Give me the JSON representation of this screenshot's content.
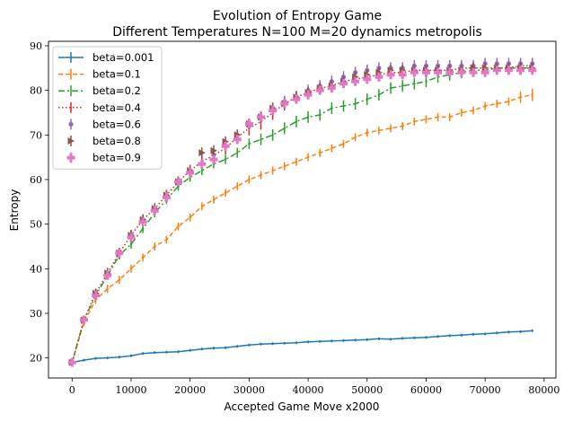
{
  "chart_data": {
    "type": "line",
    "title": "Evolution of Entropy Game",
    "subtitle": "Different Temperatures N=100 M=20 dynamics metropolis",
    "xlabel": "Accepted Game Move x2000",
    "ylabel": "Entropy",
    "xlim": [
      -4000,
      82000
    ],
    "ylim": [
      15.5,
      91
    ],
    "xticks": [
      0,
      10000,
      20000,
      30000,
      40000,
      50000,
      60000,
      70000,
      80000
    ],
    "yticks": [
      20,
      30,
      40,
      50,
      60,
      70,
      80,
      90
    ],
    "grid": false,
    "legend_position": "top-left",
    "series": [
      {
        "name": "beta=0.001",
        "color": "#1f77b4",
        "x": [
          0,
          2000,
          4000,
          6000,
          8000,
          10000,
          12000,
          14000,
          16000,
          18000,
          20000,
          22000,
          24000,
          26000,
          28000,
          30000,
          32000,
          34000,
          36000,
          38000,
          40000,
          42000,
          44000,
          46000,
          48000,
          50000,
          52000,
          54000,
          56000,
          58000,
          60000,
          62000,
          64000,
          66000,
          68000,
          70000,
          72000,
          74000,
          76000,
          78000
        ],
        "y": [
          19.0,
          19.5,
          19.9,
          20.0,
          20.2,
          20.5,
          21.0,
          21.2,
          21.3,
          21.4,
          21.7,
          22.0,
          22.2,
          22.3,
          22.6,
          22.9,
          23.1,
          23.2,
          23.3,
          23.4,
          23.6,
          23.7,
          23.8,
          23.9,
          24.0,
          24.1,
          24.3,
          24.2,
          24.4,
          24.5,
          24.6,
          24.8,
          25.0,
          25.1,
          25.3,
          25.4,
          25.6,
          25.8,
          25.9,
          26.1
        ],
        "err": [
          0.3,
          0.3,
          0.3,
          0.3,
          0.3,
          0.3,
          0.3,
          0.3,
          0.3,
          0.3,
          0.3,
          0.3,
          0.3,
          0.3,
          0.3,
          0.3,
          0.3,
          0.3,
          0.3,
          0.3,
          0.3,
          0.3,
          0.3,
          0.3,
          0.3,
          0.3,
          0.3,
          0.3,
          0.3,
          0.3,
          0.3,
          0.3,
          0.3,
          0.3,
          0.3,
          0.3,
          0.3,
          0.3,
          0.3,
          0.3
        ],
        "style": "solid"
      },
      {
        "name": "beta=0.1",
        "color": "#ff7f0e",
        "x": [
          0,
          2000,
          4000,
          6000,
          8000,
          10000,
          12000,
          14000,
          16000,
          18000,
          20000,
          22000,
          24000,
          26000,
          28000,
          30000,
          32000,
          34000,
          36000,
          38000,
          40000,
          42000,
          44000,
          46000,
          48000,
          50000,
          52000,
          54000,
          56000,
          58000,
          60000,
          62000,
          64000,
          66000,
          68000,
          70000,
          72000,
          74000,
          76000,
          78000
        ],
        "y": [
          19.0,
          28.0,
          33.0,
          35.5,
          37.5,
          40.0,
          42.5,
          45.0,
          46.5,
          49.5,
          51.5,
          54.0,
          55.5,
          57.0,
          58.5,
          60.0,
          61.0,
          62.0,
          63.0,
          64.0,
          65.0,
          66.0,
          67.0,
          68.0,
          69.5,
          70.5,
          71.0,
          71.5,
          72.0,
          73.0,
          73.5,
          74.0,
          74.0,
          75.0,
          75.5,
          76.5,
          77.0,
          77.5,
          78.5,
          79.0
        ],
        "err": [
          0.8,
          0.9,
          0.9,
          0.9,
          0.9,
          0.9,
          0.9,
          0.9,
          0.9,
          0.9,
          0.9,
          0.9,
          0.9,
          0.9,
          0.9,
          0.9,
          0.9,
          0.9,
          0.9,
          0.9,
          0.9,
          0.9,
          0.9,
          0.9,
          0.9,
          0.9,
          0.9,
          0.9,
          0.9,
          0.9,
          0.9,
          0.9,
          0.9,
          0.9,
          0.9,
          0.9,
          0.9,
          0.9,
          1.3,
          1.4
        ],
        "style": "dashed"
      },
      {
        "name": "beta=0.2",
        "color": "#2ca02c",
        "x": [
          0,
          2000,
          4000,
          6000,
          8000,
          10000,
          12000,
          14000,
          16000,
          18000,
          20000,
          22000,
          24000,
          26000,
          28000,
          30000,
          32000,
          34000,
          36000,
          38000,
          40000,
          42000,
          44000,
          46000,
          48000,
          50000,
          52000,
          54000,
          56000,
          58000,
          60000,
          62000,
          64000,
          66000,
          68000,
          70000,
          72000,
          74000,
          76000,
          78000
        ],
        "y": [
          19.0,
          28.5,
          34.0,
          38.5,
          43.0,
          45.5,
          49.0,
          52.5,
          55.5,
          58.5,
          60.5,
          62.0,
          63.5,
          64.5,
          66.0,
          68.0,
          69.0,
          70.0,
          71.5,
          73.0,
          74.0,
          74.5,
          76.0,
          76.5,
          77.0,
          78.0,
          79.0,
          80.5,
          81.0,
          81.5,
          82.0,
          83.0,
          83.5,
          84.0,
          84.5,
          84.5,
          85.0,
          85.0,
          85.0,
          85.0
        ],
        "err": [
          0.7,
          0.8,
          0.8,
          0.9,
          0.9,
          1.0,
          1.0,
          1.0,
          1.0,
          1.0,
          1.0,
          1.0,
          1.0,
          1.0,
          1.1,
          1.2,
          1.3,
          1.3,
          1.3,
          1.3,
          1.3,
          1.3,
          1.3,
          1.3,
          1.3,
          1.3,
          1.3,
          1.3,
          1.3,
          1.3,
          1.3,
          1.3,
          1.3,
          1.3,
          1.3,
          1.3,
          1.3,
          1.3,
          1.3,
          1.3
        ],
        "style": "dashdot"
      },
      {
        "name": "beta=0.4",
        "color": "#d62728",
        "x": [
          0,
          2000,
          4000,
          6000,
          8000,
          10000,
          12000,
          14000,
          16000,
          18000,
          20000,
          22000,
          24000,
          26000,
          28000,
          30000,
          32000,
          34000,
          36000,
          38000,
          40000,
          42000,
          44000,
          46000,
          48000,
          50000,
          52000,
          54000,
          56000,
          58000,
          60000,
          62000,
          64000,
          66000,
          68000,
          70000,
          72000,
          74000,
          76000,
          78000
        ],
        "y": [
          19.0,
          28.5,
          34.5,
          39.0,
          43.5,
          47.5,
          51.0,
          53.5,
          56.5,
          59.5,
          62.0,
          64.0,
          65.5,
          67.0,
          69.5,
          71.5,
          73.0,
          75.0,
          77.0,
          78.5,
          79.5,
          80.5,
          81.0,
          82.0,
          82.5,
          83.0,
          83.5,
          84.0,
          84.0,
          84.5,
          84.5,
          84.5,
          84.5,
          85.0,
          85.0,
          85.0,
          85.0,
          85.0,
          85.5,
          85.5
        ],
        "err": [
          0.8,
          1.0,
          1.0,
          1.2,
          1.2,
          1.2,
          1.2,
          1.2,
          1.2,
          1.2,
          1.3,
          1.3,
          1.3,
          1.4,
          1.5,
          1.6,
          1.8,
          1.6,
          1.5,
          1.4,
          1.3,
          1.3,
          1.3,
          1.3,
          1.3,
          1.3,
          1.3,
          1.3,
          1.3,
          1.3,
          1.3,
          1.3,
          1.3,
          1.3,
          1.3,
          1.3,
          1.3,
          1.3,
          1.3,
          1.3
        ],
        "style": "dotted"
      },
      {
        "name": "beta=0.6",
        "color": "#9467bd",
        "x": [
          0,
          2000,
          4000,
          6000,
          8000,
          10000,
          12000,
          14000,
          16000,
          18000,
          20000,
          22000,
          24000,
          26000,
          28000,
          30000,
          32000,
          34000,
          36000,
          38000,
          40000,
          42000,
          44000,
          46000,
          48000,
          50000,
          52000,
          54000,
          56000,
          58000,
          60000,
          62000,
          64000,
          66000,
          68000,
          70000,
          72000,
          74000,
          76000,
          78000
        ],
        "y": [
          19.0,
          28.5,
          34.5,
          39.0,
          43.5,
          47.5,
          51.0,
          53.5,
          56.5,
          59.5,
          62.0,
          63.5,
          65.5,
          67.5,
          70.0,
          72.0,
          74.0,
          76.0,
          77.5,
          78.5,
          80.0,
          81.0,
          82.0,
          83.0,
          84.0,
          84.5,
          85.0,
          85.0,
          85.0,
          85.5,
          85.5,
          85.5,
          85.5,
          85.5,
          85.5,
          86.0,
          86.0,
          86.0,
          86.0,
          86.0
        ],
        "err": [
          0.8,
          0.9,
          1.0,
          1.0,
          1.0,
          1.0,
          1.0,
          1.0,
          1.0,
          1.0,
          1.0,
          1.0,
          1.0,
          1.1,
          1.2,
          1.2,
          1.3,
          1.3,
          1.3,
          1.3,
          1.3,
          1.3,
          1.3,
          1.3,
          1.3,
          1.3,
          1.3,
          1.3,
          1.3,
          1.3,
          1.3,
          1.3,
          1.3,
          1.3,
          1.3,
          1.3,
          1.3,
          1.3,
          1.3,
          1.3
        ],
        "style": "markers"
      },
      {
        "name": "beta=0.8",
        "color": "#8c564b",
        "x": [
          0,
          2000,
          4000,
          6000,
          8000,
          10000,
          12000,
          14000,
          16000,
          18000,
          20000,
          22000,
          24000,
          26000,
          28000,
          30000,
          32000,
          34000,
          36000,
          38000,
          40000,
          42000,
          44000,
          46000,
          48000,
          50000,
          52000,
          54000,
          56000,
          58000,
          60000,
          62000,
          64000,
          66000,
          68000,
          70000,
          72000,
          74000,
          76000,
          78000
        ],
        "y": [
          19.0,
          28.5,
          34.5,
          39.0,
          43.5,
          47.5,
          51.0,
          53.5,
          56.5,
          59.5,
          62.0,
          66.0,
          66.5,
          68.5,
          70.0,
          72.5,
          74.0,
          76.0,
          77.0,
          78.5,
          79.5,
          80.5,
          81.0,
          82.0,
          83.0,
          83.5,
          84.0,
          84.5,
          84.5,
          84.5,
          84.5,
          84.5,
          84.5,
          84.5,
          85.0,
          85.0,
          85.0,
          85.0,
          85.0,
          85.0
        ],
        "err": [
          0.8,
          1.0,
          1.0,
          1.2,
          1.2,
          1.2,
          1.2,
          1.2,
          1.2,
          1.2,
          1.2,
          1.2,
          1.2,
          1.2,
          1.2,
          1.2,
          1.2,
          1.2,
          1.2,
          1.2,
          1.2,
          1.2,
          1.2,
          1.2,
          1.2,
          1.2,
          1.2,
          1.2,
          1.2,
          1.2,
          1.2,
          1.2,
          1.2,
          1.2,
          1.2,
          1.2,
          1.2,
          1.2,
          1.2,
          1.2
        ],
        "style": "markers"
      },
      {
        "name": "beta=0.9",
        "color": "#e377c2",
        "x": [
          0,
          2000,
          4000,
          6000,
          8000,
          10000,
          12000,
          14000,
          16000,
          18000,
          20000,
          22000,
          24000,
          26000,
          28000,
          30000,
          32000,
          34000,
          36000,
          38000,
          40000,
          42000,
          44000,
          46000,
          48000,
          50000,
          52000,
          54000,
          56000,
          58000,
          60000,
          62000,
          64000,
          66000,
          68000,
          70000,
          72000,
          74000,
          76000,
          78000
        ],
        "y": [
          19.0,
          28.5,
          34.0,
          38.5,
          43.5,
          47.0,
          50.5,
          53.0,
          56.0,
          59.5,
          61.5,
          63.5,
          64.5,
          67.5,
          69.0,
          72.5,
          74.0,
          75.5,
          77.0,
          78.0,
          79.0,
          80.0,
          80.5,
          81.5,
          82.0,
          82.5,
          83.0,
          83.5,
          83.5,
          84.0,
          84.0,
          84.0,
          84.0,
          84.0,
          84.0,
          84.0,
          84.5,
          84.5,
          84.5,
          84.5
        ],
        "err": [
          0.8,
          1.0,
          1.0,
          1.0,
          1.0,
          1.0,
          1.0,
          1.0,
          1.0,
          1.0,
          1.0,
          1.0,
          1.0,
          1.0,
          1.0,
          1.0,
          1.0,
          1.0,
          1.0,
          1.0,
          1.0,
          1.0,
          1.0,
          1.0,
          1.0,
          1.0,
          1.0,
          1.0,
          1.0,
          1.0,
          1.0,
          1.0,
          1.0,
          1.0,
          1.0,
          1.0,
          1.0,
          1.0,
          1.0,
          1.0
        ],
        "style": "markers"
      }
    ]
  }
}
